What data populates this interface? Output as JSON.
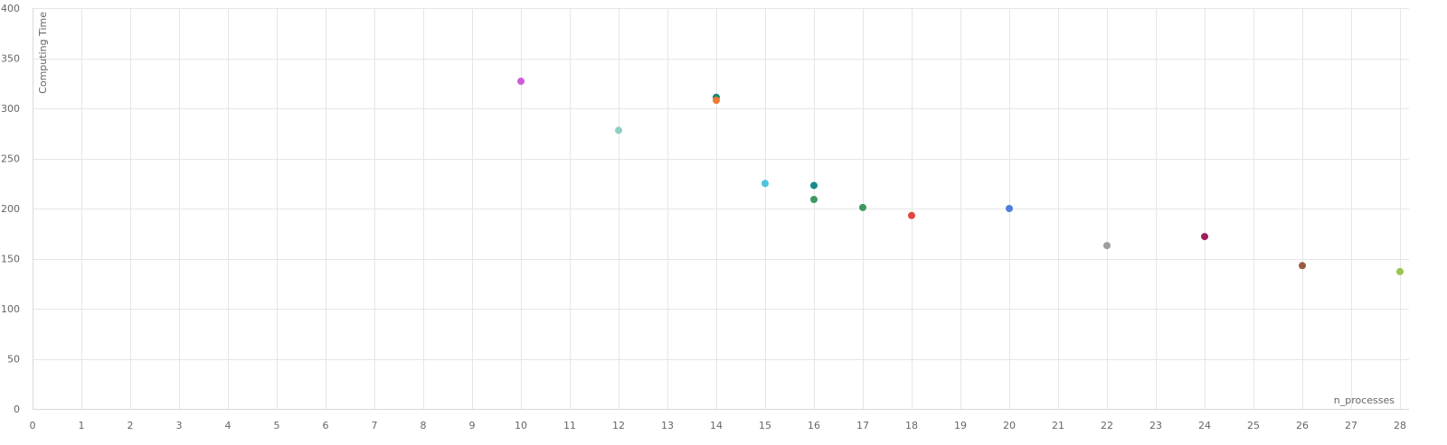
{
  "chart_data": {
    "type": "scatter",
    "title": "",
    "xlabel": "n_processes",
    "ylabel": "Computing Time",
    "xlim": [
      0,
      28
    ],
    "ylim": [
      0,
      400
    ],
    "xticks": [
      0,
      1,
      2,
      3,
      4,
      5,
      6,
      7,
      8,
      9,
      10,
      11,
      12,
      13,
      14,
      15,
      16,
      17,
      18,
      19,
      20,
      21,
      22,
      23,
      24,
      25,
      26,
      27,
      28
    ],
    "yticks": [
      0,
      50,
      100,
      150,
      200,
      250,
      300,
      350,
      400
    ],
    "grid": true,
    "legend": "none",
    "points": [
      {
        "x": 10,
        "y": 327,
        "color": "#cc5cd6"
      },
      {
        "x": 12,
        "y": 278,
        "color": "#8ecfc7"
      },
      {
        "x": 14,
        "y": 311,
        "color": "#1a8a74"
      },
      {
        "x": 14,
        "y": 308,
        "color": "#ef7a35"
      },
      {
        "x": 15,
        "y": 225,
        "color": "#4dc4dc"
      },
      {
        "x": 16,
        "y": 223,
        "color": "#178a8a"
      },
      {
        "x": 16,
        "y": 209,
        "color": "#3d9a5f"
      },
      {
        "x": 17,
        "y": 201,
        "color": "#3d9a5f"
      },
      {
        "x": 18,
        "y": 193,
        "color": "#e2453e"
      },
      {
        "x": 20,
        "y": 200,
        "color": "#4e7fdc"
      },
      {
        "x": 22,
        "y": 163,
        "color": "#9e9e9e"
      },
      {
        "x": 24,
        "y": 172,
        "color": "#a01f5a"
      },
      {
        "x": 26,
        "y": 143,
        "color": "#9c5a44"
      },
      {
        "x": 28,
        "y": 137,
        "color": "#98c54a"
      }
    ]
  }
}
